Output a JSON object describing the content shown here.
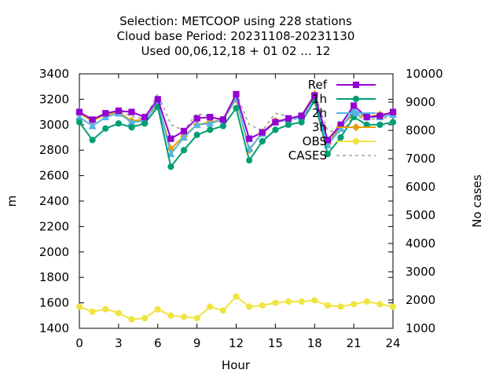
{
  "chart_data": {
    "type": "line",
    "title_lines": [
      "Selection: METCOOP using   228 stations",
      "Cloud base   Period: 20231108-20231130",
      "Used  00,06,12,18 + 01 02 ... 12"
    ],
    "xlabel": "Hour",
    "ylabel": "m",
    "y2label": "No cases",
    "xlim": [
      0,
      24
    ],
    "ylim": [
      1400,
      3400
    ],
    "y2lim": [
      1000,
      10000
    ],
    "xticks": [
      0,
      3,
      6,
      9,
      12,
      15,
      18,
      21,
      24
    ],
    "yticks": [
      1400,
      1600,
      1800,
      2000,
      2200,
      2400,
      2600,
      2800,
      3000,
      3200,
      3400
    ],
    "y2ticks": [
      1000,
      2000,
      3000,
      4000,
      5000,
      6000,
      7000,
      8000,
      9000,
      10000
    ],
    "grid": false,
    "legend_position": "top-right",
    "x": [
      0,
      1,
      2,
      3,
      4,
      5,
      6,
      7,
      8,
      9,
      10,
      11,
      12,
      13,
      14,
      15,
      16,
      17,
      18,
      19,
      20,
      21,
      22,
      23,
      24
    ],
    "series": [
      {
        "name": "Ref",
        "color": "#9400d3",
        "marker": "square",
        "values": [
          3100,
          3040,
          3090,
          3110,
          3100,
          3060,
          3200,
          2890,
          2950,
          3050,
          3060,
          3040,
          3240,
          2890,
          2940,
          3020,
          3050,
          3070,
          3230,
          2880,
          3000,
          3150,
          3060,
          3070,
          3100
        ]
      },
      {
        "name": "1h",
        "color": "#009e73",
        "marker": "circle",
        "values": [
          3020,
          2880,
          2970,
          3010,
          2980,
          3010,
          3140,
          2670,
          2800,
          2920,
          2960,
          2990,
          3130,
          2720,
          2870,
          2960,
          3000,
          3020,
          3190,
          2770,
          2900,
          3060,
          3000,
          3000,
          3020
        ]
      },
      {
        "name": "2h",
        "color": "#56b4e9",
        "marker": "triangle",
        "values": [
          3060,
          2990,
          3060,
          3090,
          3020,
          3030,
          3180,
          2770,
          2900,
          3000,
          3010,
          3040,
          3210,
          2810,
          2930,
          3020,
          3040,
          3060,
          3210,
          2840,
          2970,
          3120,
          3060,
          3060,
          3080
        ]
      },
      {
        "name": "3h",
        "color": "#e69f00",
        "marker": "diamond",
        "values": [
          3090,
          3030,
          3080,
          3100,
          3030,
          3040,
          3160,
          2810,
          2910,
          3000,
          3020,
          3040,
          3200,
          2800,
          2940,
          3030,
          3040,
          3070,
          3240,
          2850,
          2990,
          3080,
          3060,
          3080,
          3090
        ]
      },
      {
        "name": "OBS",
        "color": "#f0e442",
        "marker": "circle",
        "values": [
          1570,
          1530,
          1550,
          1520,
          1470,
          1480,
          1550,
          1500,
          1490,
          1480,
          1570,
          1540,
          1650,
          1570,
          1580,
          1600,
          1610,
          1610,
          1620,
          1580,
          1570,
          1590,
          1610,
          1590,
          1570
        ]
      },
      {
        "name": "CASES",
        "color": "#a0a0a0",
        "axis": "y2",
        "dashed": true,
        "values": [
          8600,
          8400,
          8500,
          8700,
          8500,
          8400,
          9300,
          8200,
          8000,
          8600,
          8500,
          8300,
          9300,
          8200,
          8000,
          8600,
          8500,
          8300,
          9300,
          8000,
          7900,
          8500,
          8400,
          8400,
          8500
        ]
      }
    ]
  }
}
